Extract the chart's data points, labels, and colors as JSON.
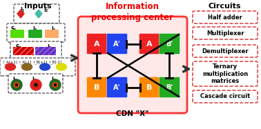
{
  "title_center": "Information\nprocessing center",
  "title_left": "Inputs",
  "title_right": "Circuits",
  "cdn_label": "CDN \"X\"",
  "circuits": [
    "Half adder",
    "Multiplexer",
    "Demultiplexer",
    "Ternary\nmultiplication\nmatrices",
    "Cascade circuit"
  ],
  "center_bg": "#ffe8e8",
  "center_border": "#ff3333",
  "block_colors": {
    "A_red": "#ee2222",
    "Ap_blue": "#2244ee",
    "B_orange": "#ff8800",
    "Bp_green": "#22aa22"
  },
  "figsize": [
    3.78,
    1.87
  ],
  "dpi": 100
}
